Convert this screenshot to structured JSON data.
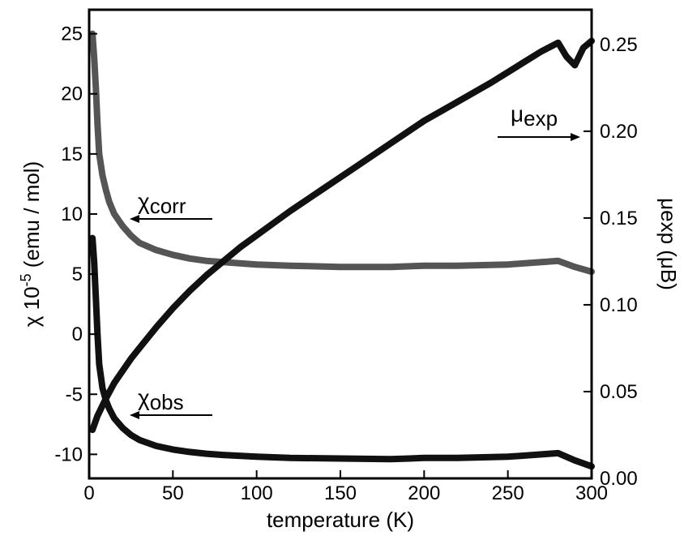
{
  "chart_data": {
    "type": "line",
    "xlabel": "temperature (K)",
    "ylabel_left": {
      "prefix": "χ 10",
      "sup": "-5",
      "suffix": " (emu / mol)"
    },
    "ylabel_right": {
      "text": "μexp (μB)",
      "orientation": "rotated 90° clockwise"
    },
    "xlim": [
      0,
      300
    ],
    "ylim_left": [
      -12,
      27
    ],
    "ylim_right": [
      0.0,
      0.27
    ],
    "xticks": [
      "0",
      "50",
      "100",
      "150",
      "200",
      "250",
      "300"
    ],
    "yticks_left": [
      "-10",
      "-5",
      "0",
      "5",
      "10",
      "15",
      "20",
      "25"
    ],
    "yticks_right": [
      "0.00",
      "0.05",
      "0.10",
      "0.15",
      "0.20",
      "0.25"
    ],
    "annotations": [
      {
        "symbol": "χ",
        "subscript": "corr",
        "arrow": "left",
        "series": "chi_corr"
      },
      {
        "symbol": "χ",
        "subscript": "obs",
        "arrow": "left",
        "series": "chi_obs"
      },
      {
        "symbol": "μ",
        "subscript": "exp",
        "arrow": "right",
        "series": "mu_exp"
      }
    ],
    "series": [
      {
        "key": "chi_corr",
        "axis": "left",
        "color": "#555555",
        "x": [
          2,
          3,
          4,
          5,
          6,
          8,
          10,
          12,
          15,
          20,
          25,
          30,
          40,
          50,
          60,
          70,
          80,
          100,
          120,
          150,
          180,
          200,
          220,
          250,
          270,
          280,
          290,
          300
        ],
        "y": [
          25,
          23,
          20.5,
          17.5,
          15,
          13.2,
          12,
          11,
          10,
          9,
          8.2,
          7.6,
          7,
          6.6,
          6.3,
          6.1,
          6.0,
          5.8,
          5.7,
          5.6,
          5.6,
          5.7,
          5.7,
          5.8,
          6.0,
          6.1,
          5.6,
          5.2
        ]
      },
      {
        "key": "chi_obs",
        "axis": "left",
        "color": "#111111",
        "x": [
          2,
          3,
          4,
          5,
          6,
          8,
          10,
          12,
          15,
          20,
          25,
          30,
          40,
          50,
          60,
          70,
          80,
          100,
          120,
          150,
          180,
          200,
          220,
          250,
          270,
          280,
          290,
          300
        ],
        "y": [
          8,
          6,
          3,
          0,
          -2.5,
          -4.5,
          -5.5,
          -6.2,
          -7,
          -7.8,
          -8.4,
          -8.8,
          -9.3,
          -9.6,
          -9.8,
          -9.95,
          -10.05,
          -10.2,
          -10.3,
          -10.35,
          -10.4,
          -10.3,
          -10.3,
          -10.2,
          -10.0,
          -9.9,
          -10.5,
          -11.0
        ]
      },
      {
        "key": "mu_exp",
        "axis": "right",
        "color": "#111111",
        "x": [
          2,
          5,
          10,
          15,
          20,
          25,
          30,
          40,
          50,
          60,
          70,
          80,
          90,
          100,
          120,
          140,
          160,
          180,
          200,
          220,
          240,
          260,
          270,
          280,
          285,
          290,
          295,
          300
        ],
        "y": [
          0.028,
          0.036,
          0.046,
          0.055,
          0.062,
          0.069,
          0.075,
          0.087,
          0.098,
          0.108,
          0.117,
          0.125,
          0.133,
          0.14,
          0.154,
          0.167,
          0.18,
          0.193,
          0.206,
          0.217,
          0.228,
          0.24,
          0.246,
          0.251,
          0.243,
          0.238,
          0.248,
          0.252
        ]
      }
    ]
  }
}
